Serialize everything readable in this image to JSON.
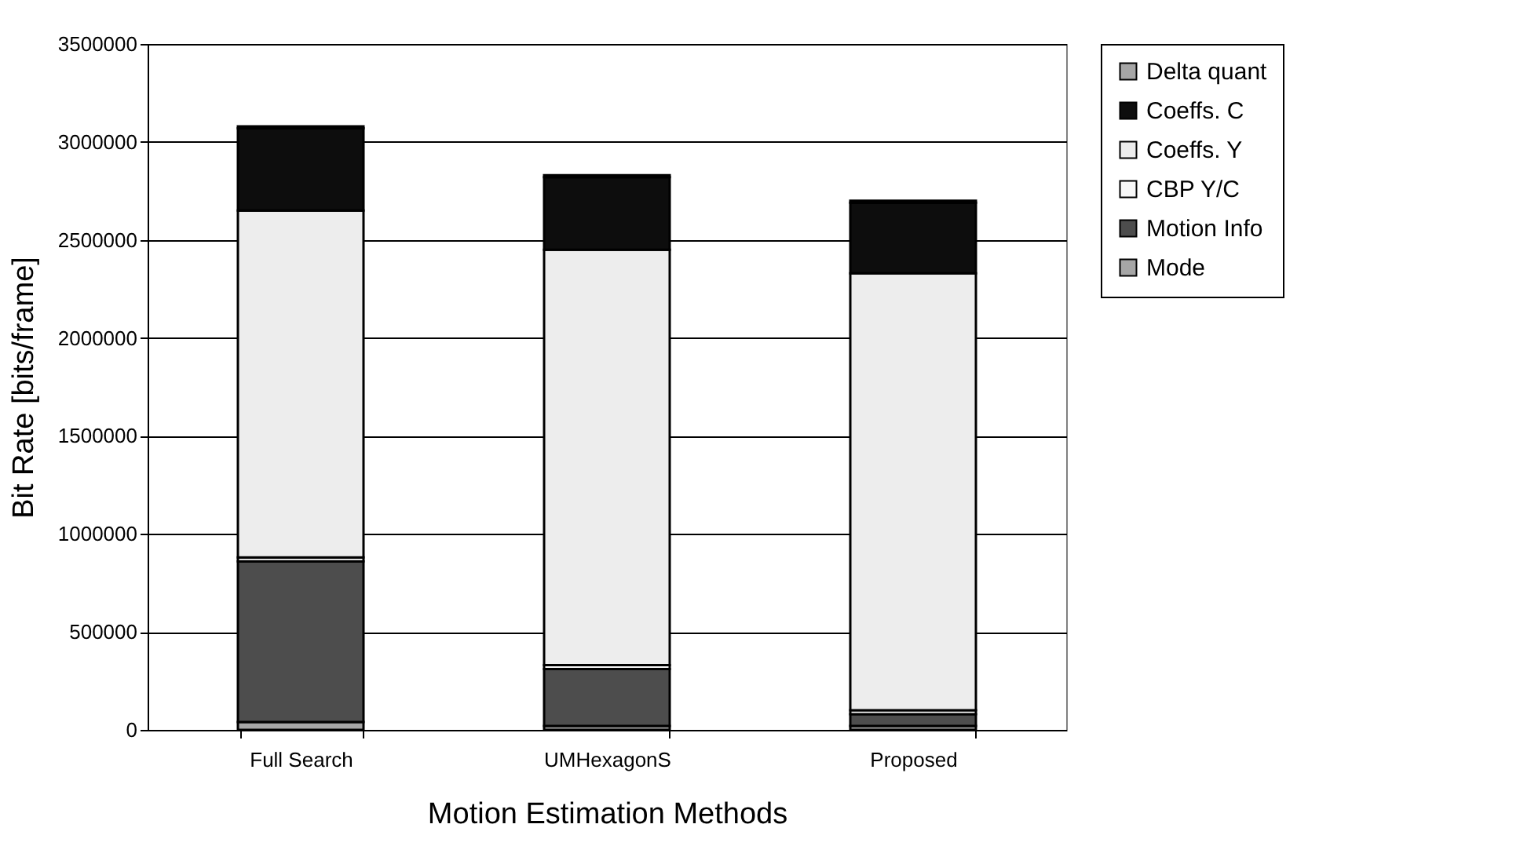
{
  "chart_data": {
    "type": "bar",
    "stacked": true,
    "xlabel": "Motion Estimation Methods",
    "ylabel": "Bit Rate [bits/frame]",
    "categories": [
      "Full Search",
      "UMHexagonS",
      "Proposed"
    ],
    "series": [
      {
        "name": "Mode",
        "color": "#a6a6a6",
        "values": [
          40000,
          20000,
          20000
        ]
      },
      {
        "name": "Motion Info",
        "color": "#4d4d4d",
        "values": [
          820000,
          290000,
          60000
        ]
      },
      {
        "name": "CBP Y/C",
        "color": "#f8f8f8",
        "values": [
          20000,
          20000,
          20000
        ]
      },
      {
        "name": "Coeffs. Y",
        "color": "#ededed",
        "values": [
          1770000,
          2120000,
          2230000
        ]
      },
      {
        "name": "Coeffs. C",
        "color": "#0d0d0d",
        "values": [
          420000,
          370000,
          360000
        ]
      },
      {
        "name": "Delta quant",
        "color": "#a6a6a6",
        "values": [
          10000,
          10000,
          10000
        ]
      }
    ],
    "ylim": [
      0,
      3500000
    ],
    "yticks": [
      0,
      500000,
      1000000,
      1500000,
      2000000,
      2500000,
      3000000,
      3500000
    ],
    "grid": "y",
    "legend": "right"
  }
}
